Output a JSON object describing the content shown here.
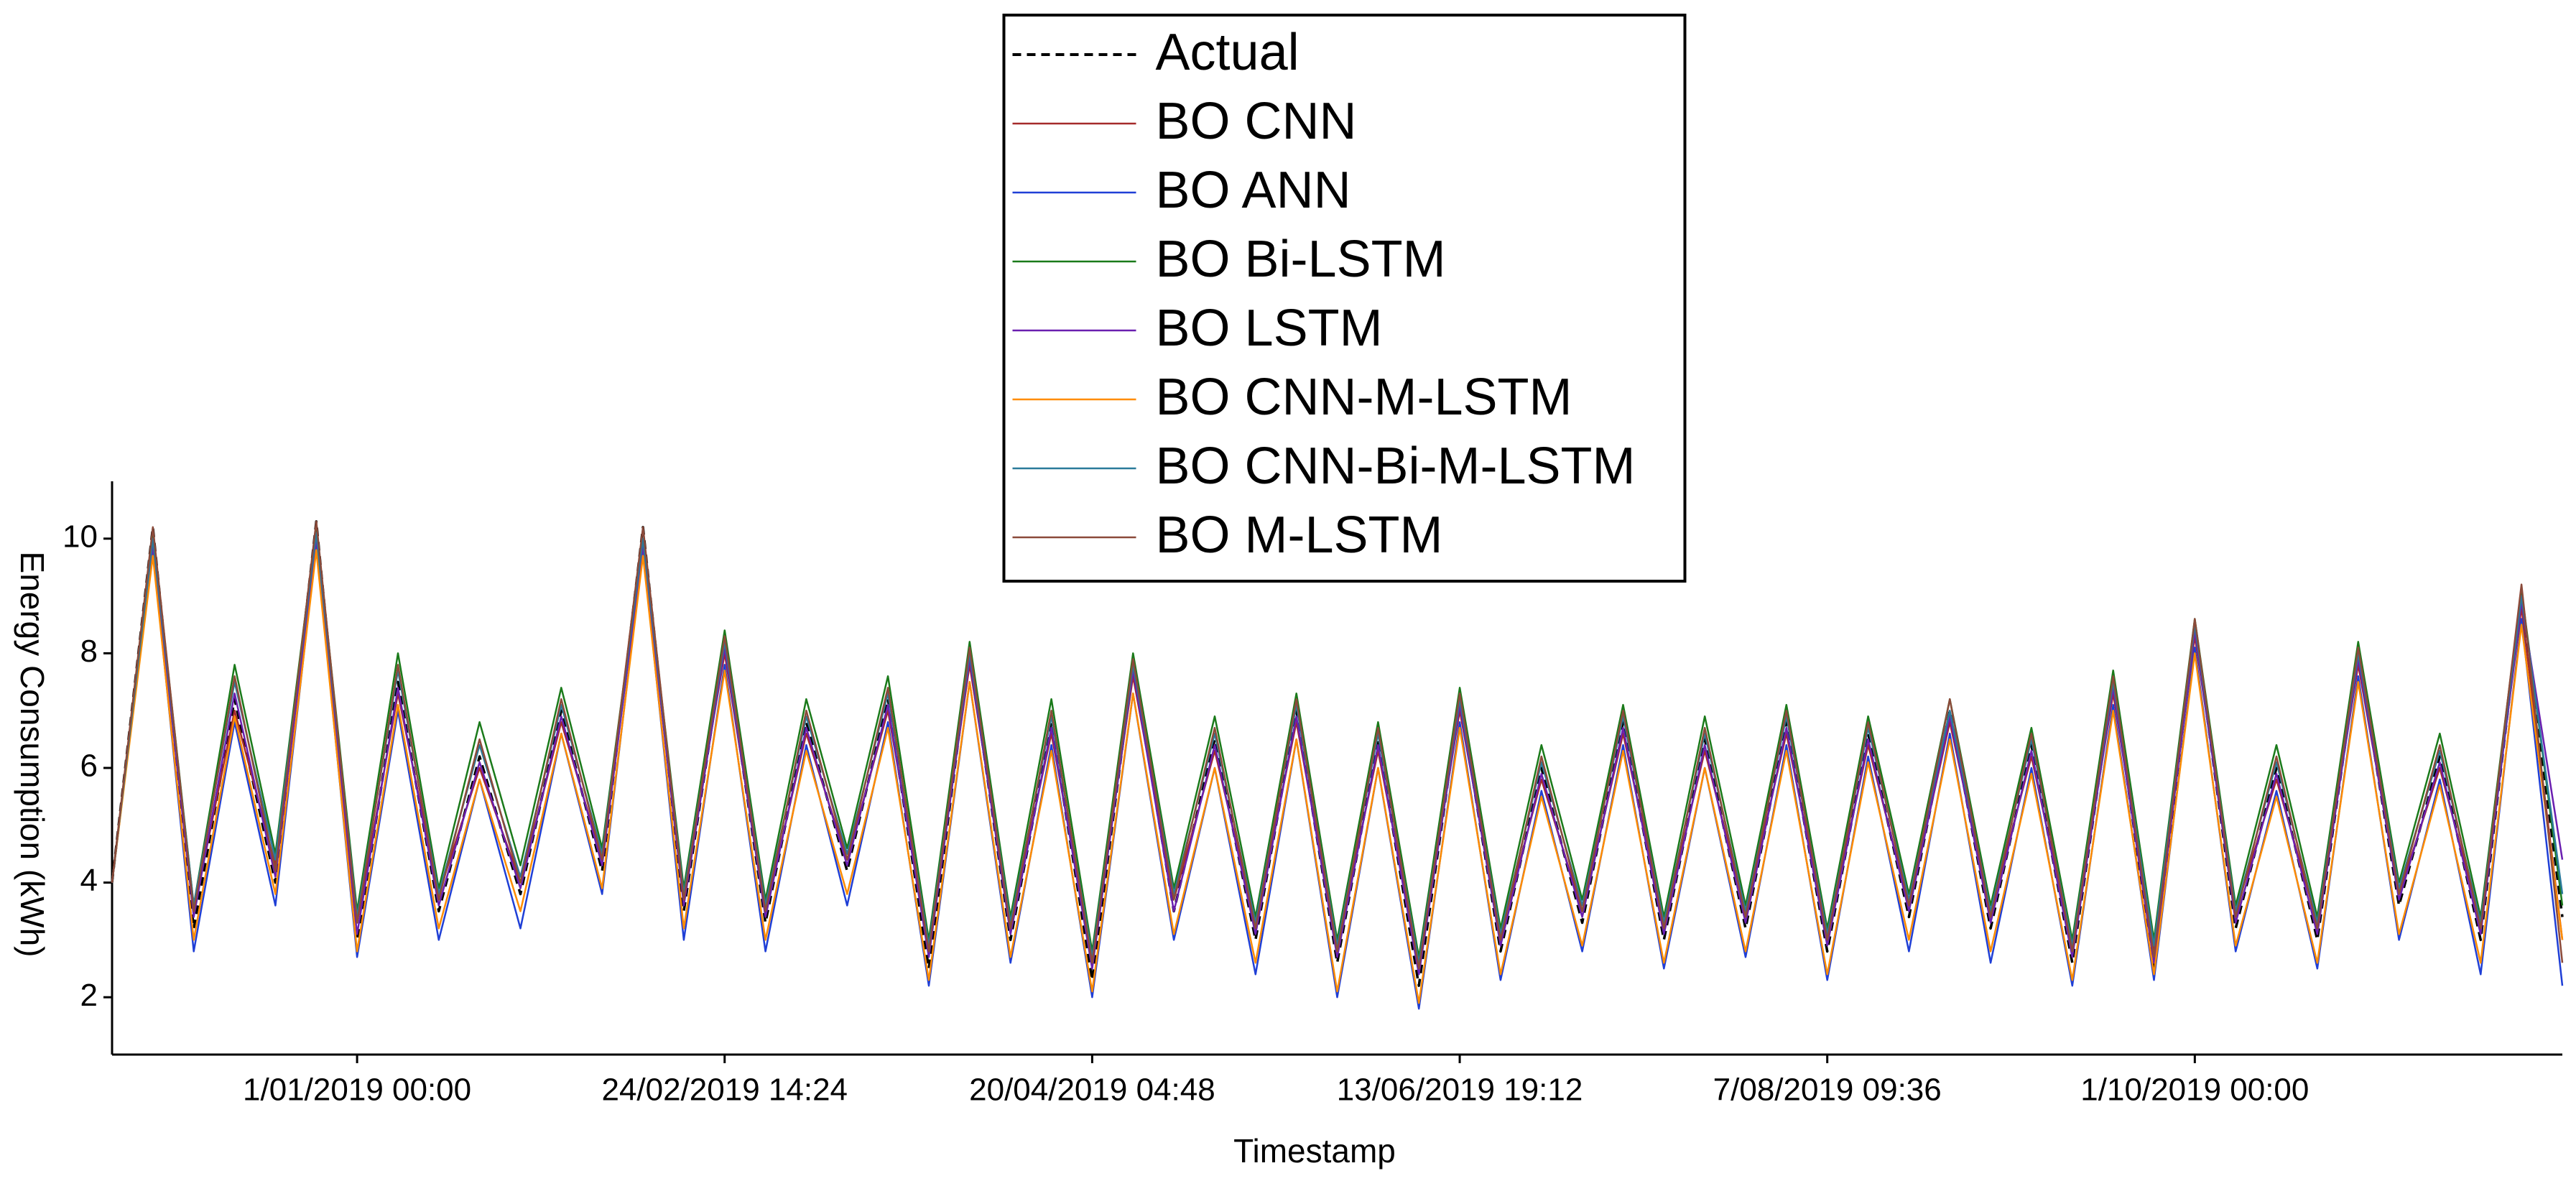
{
  "chart_data": {
    "type": "line",
    "x_label": "Timestamp",
    "y_label": "Energy Consumption (kWh)",
    "categories": [
      null,
      null,
      null,
      null,
      null,
      null,
      "1/01/2019 00:00",
      null,
      null,
      null,
      null,
      null,
      null,
      null,
      null,
      "24/02/2019 14:24",
      null,
      null,
      null,
      null,
      null,
      null,
      null,
      null,
      "20/04/2019 04:48",
      null,
      null,
      null,
      null,
      null,
      null,
      null,
      null,
      "13/06/2019 19:12",
      null,
      null,
      null,
      null,
      null,
      null,
      null,
      null,
      "7/08/2019 09:36",
      null,
      null,
      null,
      null,
      null,
      null,
      null,
      null,
      "1/10/2019 00:00",
      null,
      null,
      null,
      null,
      null,
      null,
      null,
      null,
      null
    ],
    "ylim": [
      1,
      11
    ],
    "yticks": [
      2,
      4,
      6,
      8,
      10
    ],
    "grid": false,
    "legend": "upper center",
    "series": [
      {
        "name": "Actual",
        "color": "#000000",
        "linestyle": "dashed",
        "values": [
          4,
          10.2,
          3.2,
          7.2,
          4.0,
          10.3,
          3.0,
          7.5,
          3.5,
          6.2,
          3.8,
          7.0,
          4.2,
          10.2,
          3.5,
          8.2,
          3.3,
          6.8,
          4.2,
          7.2,
          2.5,
          8.0,
          3.0,
          6.8,
          2.3,
          7.8,
          3.5,
          6.5,
          3.0,
          7.0,
          2.6,
          6.5,
          2.2,
          7.2,
          2.8,
          6.0,
          3.3,
          6.8,
          3.0,
          6.5,
          3.2,
          6.8,
          2.8,
          6.6,
          3.4,
          7.0,
          3.2,
          6.4,
          2.6,
          7.5,
          2.5,
          8.5,
          3.2,
          6.0,
          3.0,
          8.0,
          3.6,
          6.2,
          3.0,
          9.0,
          3.4
        ]
      },
      {
        "name": "BO CNN",
        "color": "#a52a2a",
        "linestyle": "solid",
        "values": [
          4,
          10.0,
          3.5,
          7.0,
          4.3,
          10.1,
          3.3,
          7.3,
          3.8,
          6.0,
          4.0,
          6.8,
          4.4,
          9.9,
          3.8,
          8.0,
          3.5,
          6.6,
          4.4,
          7.0,
          2.9,
          7.8,
          3.3,
          6.6,
          2.7,
          7.6,
          3.7,
          6.3,
          3.3,
          6.8,
          2.9,
          6.3,
          2.6,
          7.0,
          3.1,
          5.8,
          3.5,
          6.6,
          3.3,
          6.3,
          3.5,
          6.6,
          3.1,
          6.4,
          3.6,
          6.8,
          3.5,
          6.2,
          2.9,
          7.3,
          2.8,
          8.3,
          3.5,
          5.8,
          3.3,
          7.8,
          3.8,
          6.0,
          3.3,
          8.8,
          3.0
        ]
      },
      {
        "name": "BO ANN",
        "color": "#1f3fd6",
        "linestyle": "solid",
        "values": [
          4,
          9.8,
          2.8,
          6.8,
          3.6,
          9.9,
          2.7,
          7.0,
          3.0,
          5.8,
          3.2,
          6.6,
          3.8,
          9.8,
          3.0,
          7.8,
          2.8,
          6.4,
          3.6,
          6.8,
          2.2,
          7.5,
          2.6,
          6.4,
          2.0,
          7.3,
          3.0,
          6.0,
          2.4,
          6.5,
          2.0,
          6.0,
          1.8,
          6.8,
          2.3,
          5.6,
          2.8,
          6.4,
          2.5,
          6.0,
          2.7,
          6.4,
          2.3,
          6.2,
          2.8,
          6.6,
          2.6,
          6.0,
          2.2,
          7.1,
          2.3,
          8.1,
          2.8,
          5.6,
          2.5,
          7.6,
          3.0,
          5.8,
          2.4,
          8.6,
          2.2
        ]
      },
      {
        "name": "BO Bi-LSTM",
        "color": "#1a7a1a",
        "linestyle": "solid",
        "values": [
          4,
          10.1,
          3.6,
          7.8,
          4.5,
          10.2,
          3.5,
          8.0,
          3.9,
          6.8,
          4.3,
          7.4,
          4.6,
          10.0,
          3.9,
          8.4,
          3.7,
          7.2,
          4.6,
          7.6,
          3.0,
          8.2,
          3.4,
          7.2,
          2.8,
          8.0,
          3.9,
          6.9,
          3.4,
          7.3,
          3.0,
          6.8,
          2.7,
          7.4,
          3.2,
          6.4,
          3.7,
          7.1,
          3.4,
          6.9,
          3.6,
          7.1,
          3.2,
          6.9,
          3.8,
          7.2,
          3.6,
          6.7,
          3.0,
          7.7,
          3.0,
          8.6,
          3.6,
          6.4,
          3.4,
          8.2,
          4.0,
          6.6,
          3.4,
          9.1,
          3.6
        ]
      },
      {
        "name": "BO LSTM",
        "color": "#6a1fb0",
        "linestyle": "solid",
        "values": [
          4,
          9.9,
          3.4,
          7.3,
          4.1,
          10.0,
          3.1,
          7.4,
          3.6,
          6.1,
          3.9,
          6.9,
          4.3,
          9.9,
          3.6,
          8.1,
          3.4,
          6.7,
          4.3,
          7.1,
          2.7,
          7.9,
          3.1,
          6.7,
          2.5,
          7.7,
          3.5,
          6.4,
          3.1,
          6.9,
          2.7,
          6.4,
          2.4,
          7.1,
          2.9,
          5.9,
          3.4,
          6.7,
          3.1,
          6.4,
          3.3,
          6.7,
          2.9,
          6.5,
          3.5,
          6.9,
          3.3,
          6.3,
          2.7,
          7.4,
          2.6,
          8.4,
          3.3,
          5.9,
          3.1,
          7.9,
          3.7,
          6.1,
          3.1,
          8.9,
          4.4
        ]
      },
      {
        "name": "BO CNN-M-LSTM",
        "color": "#ff8c00",
        "linestyle": "solid",
        "values": [
          4,
          9.7,
          3.0,
          6.9,
          3.8,
          9.8,
          2.8,
          7.1,
          3.2,
          5.8,
          3.5,
          6.6,
          3.9,
          9.7,
          3.2,
          7.7,
          3.0,
          6.3,
          3.8,
          6.7,
          2.3,
          7.5,
          2.7,
          6.3,
          2.1,
          7.3,
          3.1,
          6.0,
          2.6,
          6.5,
          2.1,
          6.0,
          1.9,
          6.7,
          2.4,
          5.5,
          2.9,
          6.3,
          2.6,
          6.0,
          2.8,
          6.3,
          2.4,
          6.1,
          3.0,
          6.5,
          2.8,
          5.9,
          2.3,
          7.0,
          2.4,
          8.0,
          2.9,
          5.5,
          2.6,
          7.5,
          3.1,
          5.7,
          2.6,
          8.5,
          3.0
        ]
      },
      {
        "name": "BO CNN-Bi-M-LSTM",
        "color": "#2a7a9a",
        "linestyle": "solid",
        "values": [
          4,
          10.0,
          3.6,
          7.5,
          4.4,
          10.1,
          3.4,
          7.7,
          3.8,
          6.4,
          4.1,
          7.1,
          4.5,
          10.0,
          3.8,
          8.2,
          3.6,
          6.9,
          4.5,
          7.3,
          2.9,
          8.0,
          3.3,
          6.9,
          2.7,
          7.8,
          3.8,
          6.6,
          3.3,
          7.1,
          2.9,
          6.6,
          2.6,
          7.2,
          3.1,
          6.1,
          3.6,
          6.9,
          3.3,
          6.6,
          3.5,
          6.9,
          3.1,
          6.7,
          3.7,
          7.0,
          3.5,
          6.5,
          2.9,
          7.5,
          2.9,
          8.5,
          3.5,
          6.1,
          3.3,
          8.0,
          3.9,
          6.3,
          3.3,
          9.0,
          3.8
        ]
      },
      {
        "name": "BO M-LSTM",
        "color": "#8b4a3a",
        "linestyle": "solid",
        "values": [
          4,
          10.2,
          3.5,
          7.6,
          4.2,
          10.3,
          3.3,
          7.8,
          3.7,
          6.5,
          4.0,
          7.2,
          4.4,
          10.2,
          3.7,
          8.3,
          3.5,
          7.0,
          4.4,
          7.4,
          2.8,
          8.1,
          3.2,
          7.0,
          2.6,
          7.9,
          3.7,
          6.7,
          3.2,
          7.2,
          2.8,
          6.7,
          2.5,
          7.3,
          3.0,
          6.2,
          3.5,
          7.0,
          3.2,
          6.7,
          3.4,
          7.0,
          3.0,
          6.8,
          3.6,
          7.2,
          3.4,
          6.6,
          2.8,
          7.6,
          2.7,
          8.6,
          3.4,
          6.2,
          3.2,
          8.1,
          3.8,
          6.4,
          3.2,
          9.2,
          2.6
        ]
      }
    ]
  }
}
